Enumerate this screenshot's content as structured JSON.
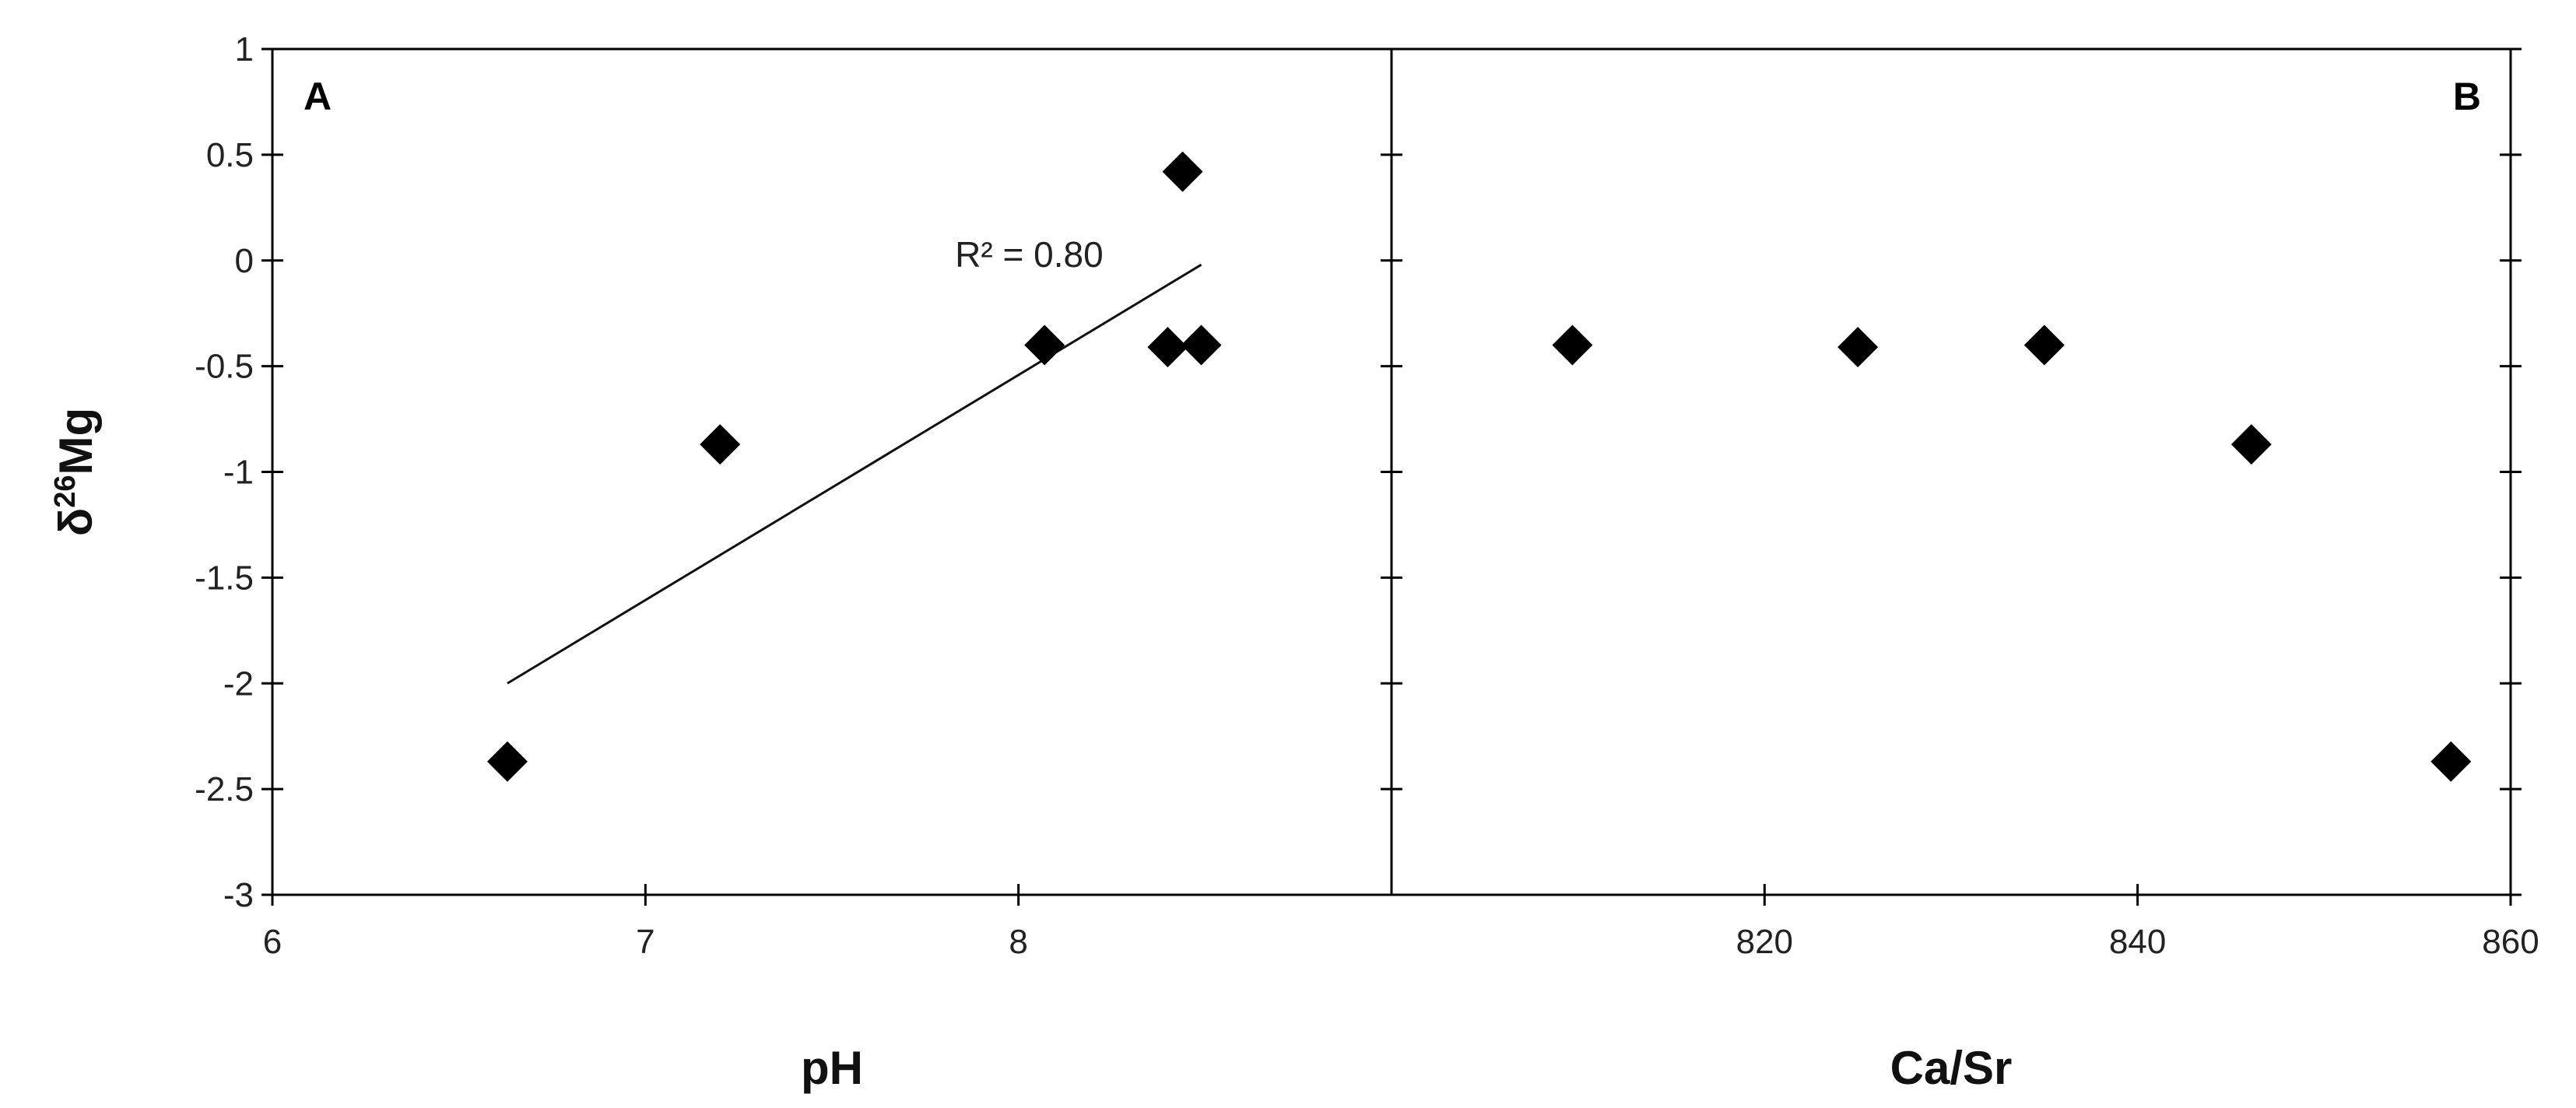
{
  "chart_data": [
    {
      "type": "scatter",
      "panel_label": "A",
      "xlabel": "pH",
      "ylabel": "δ26Mg",
      "ylabel_base": "δ",
      "ylabel_sup": "26",
      "ylabel_rest": "Mg",
      "xlim": [
        6,
        9
      ],
      "ylim": [
        -3,
        1
      ],
      "x_ticks": [
        6,
        7,
        8
      ],
      "y_ticks": [
        1,
        0.5,
        0,
        -0.5,
        -1,
        -1.5,
        -2,
        -2.5,
        -3
      ],
      "points": [
        {
          "x": 6.63,
          "y": -2.37
        },
        {
          "x": 7.2,
          "y": -0.87
        },
        {
          "x": 8.07,
          "y": -0.4
        },
        {
          "x": 8.4,
          "y": -0.41
        },
        {
          "x": 8.44,
          "y": 0.42
        },
        {
          "x": 8.49,
          "y": -0.4
        }
      ],
      "trendline": {
        "x": [
          6.63,
          8.49
        ],
        "y": [
          -2.0,
          -0.02
        ]
      },
      "annotation": "R² = 0.80",
      "grid": false,
      "marker": "diamond",
      "color": "#000000"
    },
    {
      "type": "scatter",
      "panel_label": "B",
      "xlabel": "Ca/Sr",
      "xlim": [
        800,
        860
      ],
      "ylim": [
        -3,
        1
      ],
      "x_ticks": [
        820,
        840,
        860
      ],
      "points": [
        {
          "x": 809.7,
          "y": -0.4
        },
        {
          "x": 825.0,
          "y": -0.41
        },
        {
          "x": 835.0,
          "y": -0.4
        },
        {
          "x": 846.1,
          "y": -0.87
        },
        {
          "x": 856.8,
          "y": -2.37
        }
      ],
      "grid": false,
      "marker": "diamond",
      "color": "#000000"
    }
  ]
}
